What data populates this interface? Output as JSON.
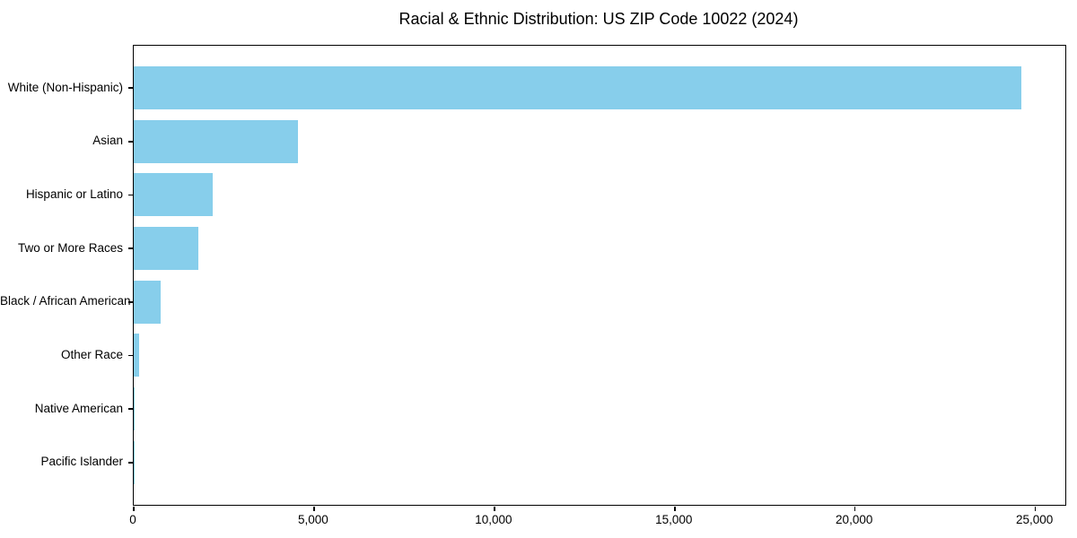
{
  "chart_data": {
    "type": "bar",
    "orientation": "horizontal",
    "title": "Racial & Ethnic Distribution: US ZIP Code 10022 (2024)",
    "categories": [
      "White (Non-Hispanic)",
      "Asian",
      "Hispanic or Latino",
      "Two or More Races",
      "Black / African American",
      "Other Race",
      "Native American",
      "Pacific Islander"
    ],
    "values": [
      24600,
      4550,
      2200,
      1800,
      750,
      160,
      30,
      10
    ],
    "xlabel": "",
    "ylabel": "",
    "xlim": [
      0,
      25830
    ],
    "xticks": [
      0,
      5000,
      10000,
      15000,
      20000,
      25000
    ],
    "xtick_labels": [
      "0",
      "5,000",
      "10,000",
      "15,000",
      "20,000",
      "25,000"
    ],
    "bar_color": "#87CEEB",
    "background": "#FFFFFF",
    "text_color": "#000000",
    "grid": false,
    "legend": false
  }
}
